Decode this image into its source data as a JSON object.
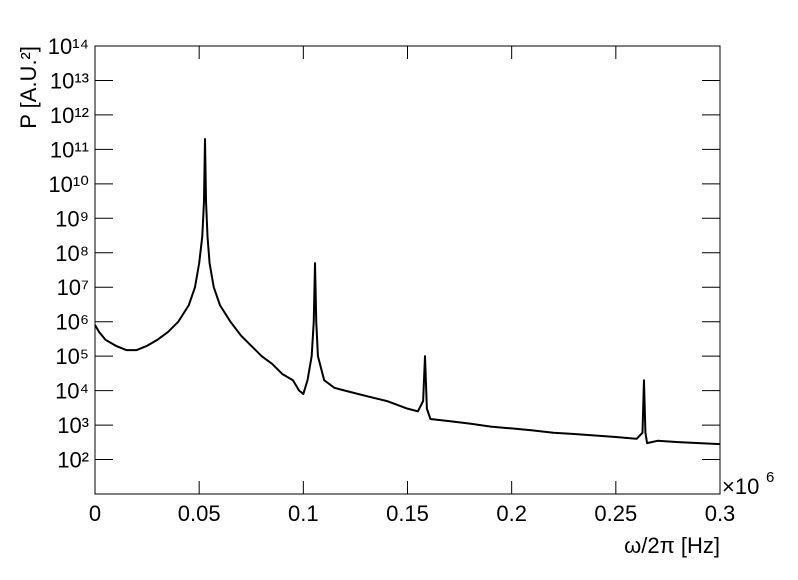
{
  "chart_data": {
    "type": "line",
    "xlabel": "ω/2π [Hz]",
    "ylabel": "P [A.U.²]",
    "x_multiplier": {
      "base": "×10",
      "exponent": "6"
    },
    "log_y": true,
    "color": "#000000",
    "xlim": [
      0,
      300000
    ],
    "xticks": [
      {
        "value": 0,
        "label": "0"
      },
      {
        "value": 50000,
        "label": "0.05"
      },
      {
        "value": 100000,
        "label": "0.1"
      },
      {
        "value": 150000,
        "label": "0.15"
      },
      {
        "value": 200000,
        "label": "0.2"
      },
      {
        "value": 250000,
        "label": "0.25"
      },
      {
        "value": 300000,
        "label": "0.3"
      }
    ],
    "ylim": [
      10,
      100000000000000
    ],
    "yticks": [
      {
        "value": 100,
        "label": "10²"
      },
      {
        "value": 1000,
        "label": "10³"
      },
      {
        "value": 10000,
        "label": "10⁴"
      },
      {
        "value": 100000,
        "label": "10⁵"
      },
      {
        "value": 1000000,
        "label": "10⁶"
      },
      {
        "value": 10000000,
        "label": "10⁷"
      },
      {
        "value": 100000000,
        "label": "10⁸"
      },
      {
        "value": 1000000000,
        "label": "10⁹"
      },
      {
        "value": 10000000000,
        "label": "10¹⁰"
      },
      {
        "value": 100000000000,
        "label": "10¹¹"
      },
      {
        "value": 1000000000000,
        "label": "10¹²"
      },
      {
        "value": 10000000000000,
        "label": "10¹³"
      },
      {
        "value": 100000000000000,
        "label": "10¹⁴"
      }
    ],
    "x": [
      0,
      2000,
      5000,
      10000,
      15000,
      20000,
      25000,
      30000,
      35000,
      40000,
      45000,
      48000,
      50000,
      51500,
      52300,
      52800,
      53300,
      54000,
      55000,
      57000,
      60000,
      65000,
      70000,
      75000,
      80000,
      85000,
      90000,
      95000,
      98000,
      100000,
      102000,
      104000,
      105000,
      105600,
      106200,
      107000,
      110000,
      115000,
      120000,
      130000,
      140000,
      150000,
      155000,
      157500,
      158400,
      159300,
      161000,
      170000,
      180000,
      190000,
      200000,
      210000,
      220000,
      230000,
      240000,
      250000,
      260000,
      262800,
      263500,
      264200,
      265000,
      270000,
      280000,
      290000,
      300000
    ],
    "values": [
      800000,
      500000,
      300000,
      200000,
      150000,
      150000,
      200000,
      300000,
      500000,
      1000000,
      3000000,
      10000000,
      50000000,
      300000000,
      3000000000,
      200000000000,
      3000000000,
      300000000,
      50000000,
      10000000,
      3000000,
      1000000,
      400000,
      200000,
      100000,
      60000,
      30000,
      20000,
      10000,
      8000,
      20000,
      100000,
      1000000,
      50000000,
      1000000,
      100000,
      20000,
      12000,
      10000,
      7000,
      5000,
      3000,
      2500,
      5000,
      100000,
      3000,
      1500,
      1300,
      1100,
      900,
      800,
      700,
      600,
      550,
      500,
      450,
      400,
      600,
      20000,
      600,
      300,
      350,
      320,
      300,
      280
    ]
  }
}
